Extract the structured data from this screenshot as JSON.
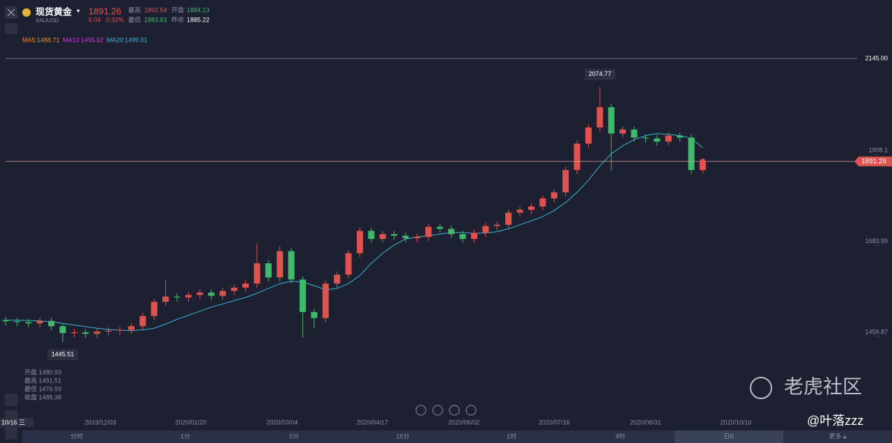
{
  "header": {
    "title": "现货黄金",
    "symbol": "XAUUSD",
    "price": "1891.26",
    "change": "6.04",
    "change_pct": "0.32%",
    "stats": [
      {
        "label": "最高",
        "value": "1892.54"
      },
      {
        "label": "开盘",
        "value": "1884.13"
      },
      {
        "label": "最低",
        "value": "1883.83"
      },
      {
        "label": "昨收",
        "value": "1885.22"
      }
    ],
    "indicators": [
      "MA5:1488.71",
      "MA10:1495.62",
      "MA20:1499.01"
    ]
  },
  "info": [
    "开盘 1480.93",
    "最高 1491.51",
    "最低 1476.93",
    "收盘 1489.38"
  ],
  "cursor_date": "10/16 三",
  "tabs": [
    "分时",
    "1分",
    "5分",
    "15分",
    "1时",
    "4时",
    "日K",
    "更多 ▴"
  ],
  "watermark": {
    "brand": "老虎社区",
    "user": "@叶落zzz"
  },
  "chart_data": {
    "type": "candlestick",
    "up_color": "#e0524f",
    "down_color": "#3fb96a",
    "grid": false,
    "ylim": [
      1276,
      2169
    ],
    "yticks": [
      1459.87,
      1683.99,
      1908.1
    ],
    "xlim": [
      -0.49,
      77.56
    ],
    "xticks": [
      {
        "value": 8.3,
        "label": "2019/12/03"
      },
      {
        "value": 16.2,
        "label": "2020/01/20"
      },
      {
        "value": 24.2,
        "label": "2020/03/04"
      },
      {
        "value": 32.1,
        "label": "2020/04/17"
      },
      {
        "value": 40.1,
        "label": "2020/06/02"
      },
      {
        "value": 48,
        "label": "2020/07/16"
      },
      {
        "value": 56,
        "label": "2020/08/31"
      },
      {
        "value": 63.9,
        "label": "2020/10/10"
      }
    ],
    "open": [
      1500,
      1497,
      1495,
      1492,
      1498,
      1485,
      1468,
      1470,
      1466,
      1472,
      1474,
      1476,
      1485,
      1510,
      1545,
      1558,
      1556,
      1562,
      1568,
      1560,
      1572,
      1580,
      1590,
      1640,
      1605,
      1670,
      1600,
      1520,
      1505,
      1590,
      1612,
      1665,
      1720,
      1700,
      1712,
      1708,
      1702,
      1705,
      1730,
      1725,
      1712,
      1700,
      1715,
      1732,
      1735,
      1765,
      1772,
      1780,
      1800,
      1815,
      1870,
      1935,
      1975,
      2025,
      1960,
      1970,
      1950,
      1948,
      1940,
      1955,
      1950,
      1870
    ],
    "high": [
      1508,
      1506,
      1503,
      1506,
      1506,
      1493,
      1478,
      1478,
      1480,
      1482,
      1484,
      1493,
      1518,
      1553,
      1600,
      1566,
      1570,
      1576,
      1576,
      1580,
      1588,
      1598,
      1688,
      1648,
      1682,
      1678,
      1608,
      1528,
      1598,
      1620,
      1673,
      1728,
      1728,
      1720,
      1720,
      1716,
      1713,
      1738,
      1738,
      1733,
      1720,
      1723,
      1740,
      1743,
      1773,
      1780,
      1788,
      1808,
      1823,
      1878,
      1943,
      1983,
      2074.77,
      2033,
      1978,
      1978,
      1958,
      1956,
      1963,
      1963,
      1958,
      1895
    ],
    "low": [
      1487,
      1485,
      1482,
      1482,
      1475,
      1445.51,
      1458,
      1456,
      1456,
      1462,
      1464,
      1466,
      1475,
      1500,
      1535,
      1546,
      1546,
      1552,
      1550,
      1550,
      1562,
      1570,
      1580,
      1595,
      1595,
      1590,
      1457,
      1480,
      1495,
      1580,
      1602,
      1655,
      1690,
      1690,
      1698,
      1692,
      1692,
      1695,
      1715,
      1702,
      1690,
      1690,
      1705,
      1722,
      1725,
      1755,
      1762,
      1770,
      1790,
      1805,
      1860,
      1925,
      1965,
      1868,
      1950,
      1940,
      1938,
      1930,
      1930,
      1940,
      1860,
      1862
    ],
    "close": [
      1497,
      1495,
      1492,
      1498,
      1485,
      1468,
      1470,
      1466,
      1472,
      1474,
      1476,
      1485,
      1510,
      1545,
      1558,
      1556,
      1562,
      1568,
      1560,
      1572,
      1580,
      1590,
      1640,
      1605,
      1670,
      1600,
      1520,
      1505,
      1590,
      1612,
      1665,
      1720,
      1700,
      1712,
      1708,
      1702,
      1705,
      1730,
      1725,
      1712,
      1700,
      1715,
      1732,
      1735,
      1765,
      1772,
      1780,
      1800,
      1815,
      1870,
      1935,
      1975,
      2025,
      1960,
      1970,
      1950,
      1948,
      1940,
      1955,
      1950,
      1870,
      1891.26
    ],
    "ma_line": {
      "color": "#3ab8d6",
      "values": [
        1500,
        1500,
        1499,
        1498,
        1496,
        1492,
        1488,
        1484,
        1480,
        1477,
        1475,
        1474,
        1476,
        1480,
        1490,
        1502,
        1512,
        1522,
        1532,
        1540,
        1548,
        1556,
        1566,
        1578,
        1590,
        1596,
        1594,
        1585,
        1575,
        1578,
        1590,
        1610,
        1640,
        1665,
        1685,
        1700,
        1705,
        1708,
        1712,
        1716,
        1716,
        1714,
        1715,
        1718,
        1725,
        1735,
        1745,
        1755,
        1770,
        1790,
        1815,
        1845,
        1880,
        1910,
        1930,
        1945,
        1955,
        1960,
        1958,
        1955,
        1948,
        1925
      ]
    },
    "alert_line": {
      "value": 2145,
      "label": "2145.00"
    }
  }
}
